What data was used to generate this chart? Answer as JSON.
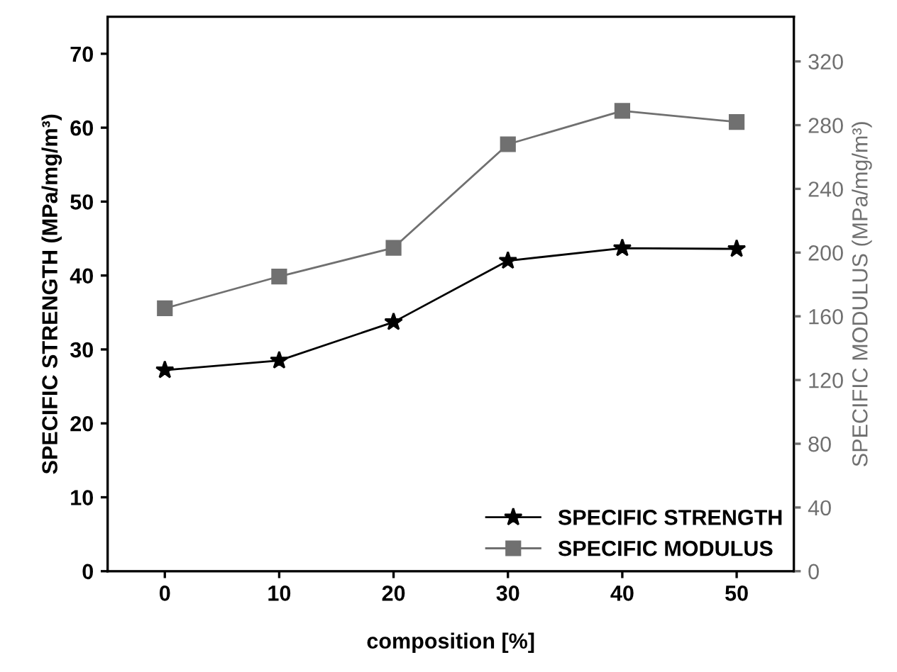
{
  "chart_data": {
    "type": "line",
    "xlabel": "composition [%]",
    "ylabel": "SPECIFIC STRENGTH (MPa/mg/m³)",
    "y2label": "SPECIFIC MODULUS (MPa/mg/m³)",
    "x": [
      0,
      10,
      20,
      30,
      40,
      50
    ],
    "series": [
      {
        "name": "SPECIFIC STRENGTH",
        "color": "#000000",
        "marker": "star",
        "values": [
          27.2,
          28.5,
          33.7,
          42.0,
          43.7,
          43.6
        ]
      },
      {
        "name": "SPECIFIC MODULUS",
        "color": "#707070",
        "marker": "square",
        "axis": "y2",
        "values": [
          165,
          185,
          203,
          268,
          289,
          282
        ]
      }
    ],
    "xlim": [
      -5,
      55
    ],
    "xticks": [
      0,
      10,
      20,
      30,
      40,
      50
    ],
    "ylim": [
      0,
      75
    ],
    "yticks": [
      0,
      10,
      20,
      30,
      40,
      50,
      60,
      70
    ],
    "y2lim": [
      0,
      348
    ],
    "y2ticks": [
      0,
      40,
      80,
      120,
      160,
      200,
      240,
      280,
      320
    ],
    "legend": "bottom right",
    "grid": false,
    "line_style": "solid"
  }
}
